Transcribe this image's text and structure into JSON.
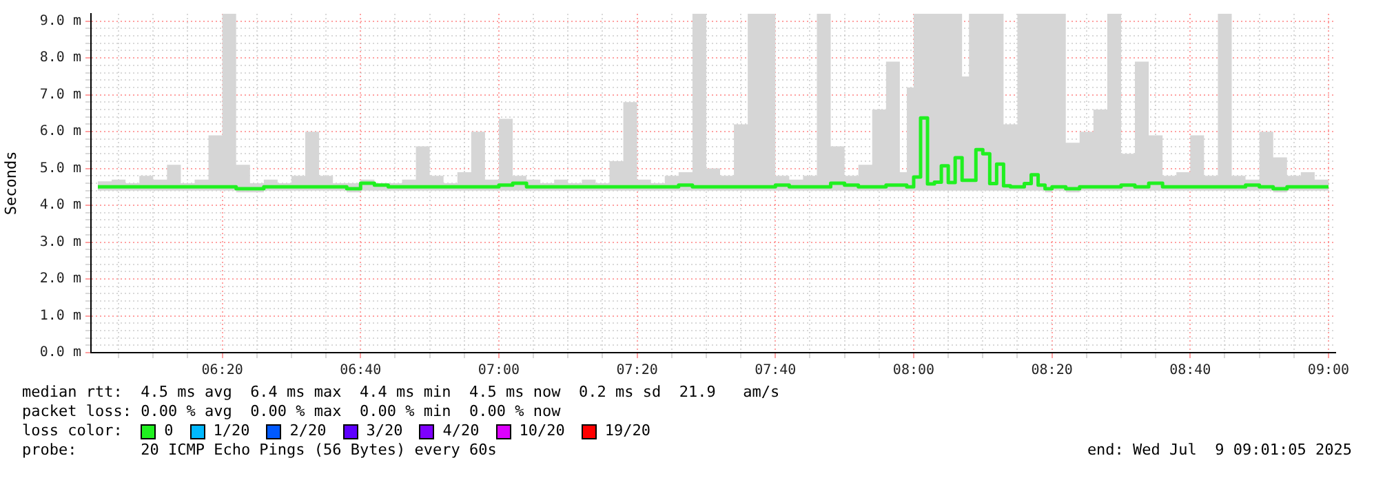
{
  "chart_data": {
    "type": "step",
    "ylabel": "Seconds",
    "legend_title": "loss color:",
    "legend": "bottom",
    "grid": true,
    "marker": "none",
    "xlim": [
      "2025-07-09T06:01",
      "2025-07-09T09:01"
    ],
    "xticks": [
      {
        "value": "2025-07-09T06:05",
        "label": null
      },
      {
        "value": "2025-07-09T06:10",
        "label": null
      },
      {
        "value": "2025-07-09T06:15",
        "label": null
      },
      {
        "value": "2025-07-09T06:20",
        "label": "06:20"
      },
      {
        "value": "2025-07-09T06:25",
        "label": null
      },
      {
        "value": "2025-07-09T06:30",
        "label": null
      },
      {
        "value": "2025-07-09T06:35",
        "label": null
      },
      {
        "value": "2025-07-09T06:40",
        "label": "06:40"
      },
      {
        "value": "2025-07-09T06:45",
        "label": null
      },
      {
        "value": "2025-07-09T06:50",
        "label": null
      },
      {
        "value": "2025-07-09T06:55",
        "label": null
      },
      {
        "value": "2025-07-09T07:00",
        "label": "07:00"
      },
      {
        "value": "2025-07-09T07:05",
        "label": null
      },
      {
        "value": "2025-07-09T07:10",
        "label": null
      },
      {
        "value": "2025-07-09T07:15",
        "label": null
      },
      {
        "value": "2025-07-09T07:20",
        "label": "07:20"
      },
      {
        "value": "2025-07-09T07:25",
        "label": null
      },
      {
        "value": "2025-07-09T07:30",
        "label": null
      },
      {
        "value": "2025-07-09T07:35",
        "label": null
      },
      {
        "value": "2025-07-09T07:40",
        "label": "07:40"
      },
      {
        "value": "2025-07-09T07:45",
        "label": null
      },
      {
        "value": "2025-07-09T07:50",
        "label": null
      },
      {
        "value": "2025-07-09T07:55",
        "label": null
      },
      {
        "value": "2025-07-09T08:00",
        "label": "08:00"
      },
      {
        "value": "2025-07-09T08:05",
        "label": null
      },
      {
        "value": "2025-07-09T08:10",
        "label": null
      },
      {
        "value": "2025-07-09T08:15",
        "label": null
      },
      {
        "value": "2025-07-09T08:20",
        "label": "08:20"
      },
      {
        "value": "2025-07-09T08:25",
        "label": null
      },
      {
        "value": "2025-07-09T08:30",
        "label": null
      },
      {
        "value": "2025-07-09T08:35",
        "label": null
      },
      {
        "value": "2025-07-09T08:40",
        "label": "08:40"
      },
      {
        "value": "2025-07-09T08:45",
        "label": null
      },
      {
        "value": "2025-07-09T08:50",
        "label": null
      },
      {
        "value": "2025-07-09T08:55",
        "label": null
      },
      {
        "value": "2025-07-09T09:00",
        "label": "09:00"
      }
    ],
    "ylim": [
      0,
      9.2
    ],
    "yticks": [
      {
        "value": 0,
        "label": "0.0 m"
      },
      {
        "value": 0.2,
        "label": null
      },
      {
        "value": 0.4,
        "label": null
      },
      {
        "value": 0.6,
        "label": null
      },
      {
        "value": 0.8,
        "label": null
      },
      {
        "value": 1,
        "label": "1.0 m"
      },
      {
        "value": 1.2,
        "label": null
      },
      {
        "value": 1.4,
        "label": null
      },
      {
        "value": 1.6,
        "label": null
      },
      {
        "value": 1.8,
        "label": null
      },
      {
        "value": 2,
        "label": "2.0 m"
      },
      {
        "value": 2.2,
        "label": null
      },
      {
        "value": 2.4,
        "label": null
      },
      {
        "value": 2.6,
        "label": null
      },
      {
        "value": 2.8,
        "label": null
      },
      {
        "value": 3,
        "label": "3.0 m"
      },
      {
        "value": 3.2,
        "label": null
      },
      {
        "value": 3.4,
        "label": null
      },
      {
        "value": 3.6,
        "label": null
      },
      {
        "value": 3.8,
        "label": null
      },
      {
        "value": 4,
        "label": "4.0 m"
      },
      {
        "value": 4.2,
        "label": null
      },
      {
        "value": 4.4,
        "label": null
      },
      {
        "value": 4.6,
        "label": null
      },
      {
        "value": 4.8,
        "label": null
      },
      {
        "value": 5,
        "label": "5.0 m"
      },
      {
        "value": 5.2,
        "label": null
      },
      {
        "value": 5.4,
        "label": null
      },
      {
        "value": 5.6,
        "label": null
      },
      {
        "value": 5.8,
        "label": null
      },
      {
        "value": 6,
        "label": "6.0 m"
      },
      {
        "value": 6.2,
        "label": null
      },
      {
        "value": 6.4,
        "label": null
      },
      {
        "value": 6.6,
        "label": null
      },
      {
        "value": 6.8,
        "label": null
      },
      {
        "value": 7,
        "label": "7.0 m"
      },
      {
        "value": 7.2,
        "label": null
      },
      {
        "value": 7.4,
        "label": null
      },
      {
        "value": 7.6,
        "label": null
      },
      {
        "value": 7.8,
        "label": null
      },
      {
        "value": 8,
        "label": "8.0 m"
      },
      {
        "value": 8.2,
        "label": null
      },
      {
        "value": 8.4,
        "label": null
      },
      {
        "value": 8.6,
        "label": null
      },
      {
        "value": 8.8,
        "label": null
      },
      {
        "value": 9,
        "label": "9.0 m"
      }
    ],
    "series": [
      {
        "name": "0",
        "color": "#20f020",
        "x": [
          "2025-07-09T06:02",
          "2025-07-09T06:04",
          "2025-07-09T06:06",
          "2025-07-09T06:08",
          "2025-07-09T06:10",
          "2025-07-09T06:12",
          "2025-07-09T06:14",
          "2025-07-09T06:16",
          "2025-07-09T06:18",
          "2025-07-09T06:20",
          "2025-07-09T06:22",
          "2025-07-09T06:24",
          "2025-07-09T06:26",
          "2025-07-09T06:28",
          "2025-07-09T06:30",
          "2025-07-09T06:32",
          "2025-07-09T06:34",
          "2025-07-09T06:36",
          "2025-07-09T06:38",
          "2025-07-09T06:40",
          "2025-07-09T06:42",
          "2025-07-09T06:44",
          "2025-07-09T06:46",
          "2025-07-09T06:48",
          "2025-07-09T06:50",
          "2025-07-09T06:52",
          "2025-07-09T06:54",
          "2025-07-09T06:56",
          "2025-07-09T06:58",
          "2025-07-09T07:00",
          "2025-07-09T07:02",
          "2025-07-09T07:04",
          "2025-07-09T07:06",
          "2025-07-09T07:08",
          "2025-07-09T07:10",
          "2025-07-09T07:12",
          "2025-07-09T07:14",
          "2025-07-09T07:16",
          "2025-07-09T07:18",
          "2025-07-09T07:20",
          "2025-07-09T07:22",
          "2025-07-09T07:24",
          "2025-07-09T07:26",
          "2025-07-09T07:28",
          "2025-07-09T07:30",
          "2025-07-09T07:32",
          "2025-07-09T07:34",
          "2025-07-09T07:36",
          "2025-07-09T07:38",
          "2025-07-09T07:40",
          "2025-07-09T07:42",
          "2025-07-09T07:44",
          "2025-07-09T07:46",
          "2025-07-09T07:48",
          "2025-07-09T07:50",
          "2025-07-09T07:52",
          "2025-07-09T07:54",
          "2025-07-09T07:56",
          "2025-07-09T07:58",
          "2025-07-09T07:59",
          "2025-07-09T08:00",
          "2025-07-09T08:01",
          "2025-07-09T08:02",
          "2025-07-09T08:03",
          "2025-07-09T08:04",
          "2025-07-09T08:05",
          "2025-07-09T08:06",
          "2025-07-09T08:07",
          "2025-07-09T08:08",
          "2025-07-09T08:09",
          "2025-07-09T08:10",
          "2025-07-09T08:11",
          "2025-07-09T08:12",
          "2025-07-09T08:13",
          "2025-07-09T08:14",
          "2025-07-09T08:15",
          "2025-07-09T08:16",
          "2025-07-09T08:17",
          "2025-07-09T08:18",
          "2025-07-09T08:19",
          "2025-07-09T08:20",
          "2025-07-09T08:22",
          "2025-07-09T08:24",
          "2025-07-09T08:26",
          "2025-07-09T08:28",
          "2025-07-09T08:30",
          "2025-07-09T08:32",
          "2025-07-09T08:34",
          "2025-07-09T08:36",
          "2025-07-09T08:38",
          "2025-07-09T08:40",
          "2025-07-09T08:42",
          "2025-07-09T08:44",
          "2025-07-09T08:46",
          "2025-07-09T08:48",
          "2025-07-09T08:50",
          "2025-07-09T08:52",
          "2025-07-09T08:54",
          "2025-07-09T08:56",
          "2025-07-09T08:58",
          "2025-07-09T09:00"
        ],
        "values": [
          4.5,
          4.5,
          4.5,
          4.5,
          4.5,
          4.5,
          4.5,
          4.5,
          4.5,
          4.5,
          4.45,
          4.45,
          4.5,
          4.5,
          4.5,
          4.5,
          4.5,
          4.5,
          4.45,
          4.6,
          4.55,
          4.5,
          4.5,
          4.5,
          4.5,
          4.5,
          4.5,
          4.5,
          4.5,
          4.55,
          4.6,
          4.5,
          4.5,
          4.5,
          4.5,
          4.5,
          4.5,
          4.5,
          4.5,
          4.5,
          4.5,
          4.5,
          4.55,
          4.5,
          4.5,
          4.5,
          4.5,
          4.5,
          4.5,
          4.55,
          4.5,
          4.5,
          4.5,
          4.6,
          4.55,
          4.5,
          4.5,
          4.55,
          4.55,
          4.5,
          4.77,
          6.37,
          4.58,
          4.63,
          5.07,
          4.62,
          5.29,
          4.68,
          4.68,
          5.51,
          5.4,
          4.59,
          5.12,
          4.53,
          4.5,
          4.5,
          4.59,
          4.83,
          4.55,
          4.45,
          4.5,
          4.45,
          4.5,
          4.5,
          4.5,
          4.55,
          4.5,
          4.6,
          4.5,
          4.5,
          4.5,
          4.5,
          4.5,
          4.5,
          4.55,
          4.5,
          4.45,
          4.5,
          4.5,
          4.5,
          4.5
        ],
        "lower": [
          4.4,
          4.4,
          4.4,
          4.4,
          4.4,
          4.4,
          4.4,
          4.4,
          4.4,
          4.4,
          4.35,
          4.35,
          4.4,
          4.4,
          4.4,
          4.4,
          4.4,
          4.4,
          4.35,
          4.4,
          4.4,
          4.4,
          4.4,
          4.4,
          4.4,
          4.4,
          4.4,
          4.4,
          4.4,
          4.4,
          4.4,
          4.4,
          4.4,
          4.4,
          4.4,
          4.4,
          4.4,
          4.4,
          4.4,
          4.4,
          4.4,
          4.4,
          4.4,
          4.4,
          4.4,
          4.4,
          4.4,
          4.4,
          4.4,
          4.4,
          4.4,
          4.4,
          4.4,
          4.4,
          4.4,
          4.4,
          4.4,
          4.4,
          4.4,
          4.4,
          4.4,
          4.4,
          4.4,
          4.4,
          4.4,
          4.4,
          4.4,
          4.4,
          4.4,
          4.4,
          4.4,
          4.4,
          4.4,
          4.4,
          4.4,
          4.4,
          4.4,
          4.4,
          4.4,
          4.35,
          4.4,
          4.35,
          4.4,
          4.4,
          4.4,
          4.4,
          4.4,
          4.4,
          4.4,
          4.4,
          4.4,
          4.4,
          4.4,
          4.4,
          4.4,
          4.4,
          4.35,
          4.4,
          4.4,
          4.4,
          4.4
        ],
        "upper": [
          4.65,
          4.7,
          4.6,
          4.8,
          4.7,
          5.1,
          4.6,
          4.7,
          5.9,
          9.2,
          5.1,
          4.6,
          4.7,
          4.6,
          4.8,
          6.0,
          4.8,
          4.6,
          4.6,
          4.7,
          4.6,
          4.6,
          4.7,
          5.6,
          4.8,
          4.6,
          4.9,
          6.0,
          4.7,
          6.35,
          4.8,
          4.7,
          4.6,
          4.7,
          4.6,
          4.7,
          4.6,
          5.2,
          6.8,
          4.7,
          4.6,
          4.8,
          4.9,
          9.2,
          5.0,
          4.8,
          6.2,
          9.2,
          9.2,
          4.8,
          4.7,
          4.8,
          9.2,
          5.6,
          4.8,
          5.1,
          6.6,
          7.9,
          4.9,
          7.2,
          9.2,
          9.2,
          9.2,
          9.2,
          9.2,
          9.2,
          9.2,
          7.5,
          9.2,
          9.2,
          9.2,
          9.2,
          9.2,
          6.2,
          6.2,
          9.2,
          9.2,
          9.2,
          9.2,
          9.2,
          9.2,
          5.7,
          6.0,
          6.6,
          9.2,
          5.4,
          7.9,
          5.9,
          4.8,
          4.9,
          5.9,
          4.8,
          9.2,
          4.8,
          4.7,
          6.0,
          5.3,
          4.8,
          4.9,
          4.7,
          5.0
        ]
      },
      {
        "name": "1/20",
        "color": "#00b8ff"
      },
      {
        "name": "2/20",
        "color": "#0059ff"
      },
      {
        "name": "3/20",
        "color": "#5e00ff"
      },
      {
        "name": "4/20",
        "color": "#7e00ff"
      },
      {
        "name": "10/20",
        "color": "#dd00ff"
      },
      {
        "name": "19/20",
        "color": "#ff0000"
      }
    ],
    "annotations": [
      "median rtt:  4.5 ms avg  6.4 ms max  4.4 ms min  4.5 ms now  0.2 ms sd  21.9   am/s",
      "packet loss: 0.00 % avg  0.00 % max  0.00 % min  0.00 % now",
      "probe:       20 ICMP Echo Pings (56 Bytes) every 60s",
      "end: Wed Jul  9 09:01:05 2025"
    ]
  }
}
